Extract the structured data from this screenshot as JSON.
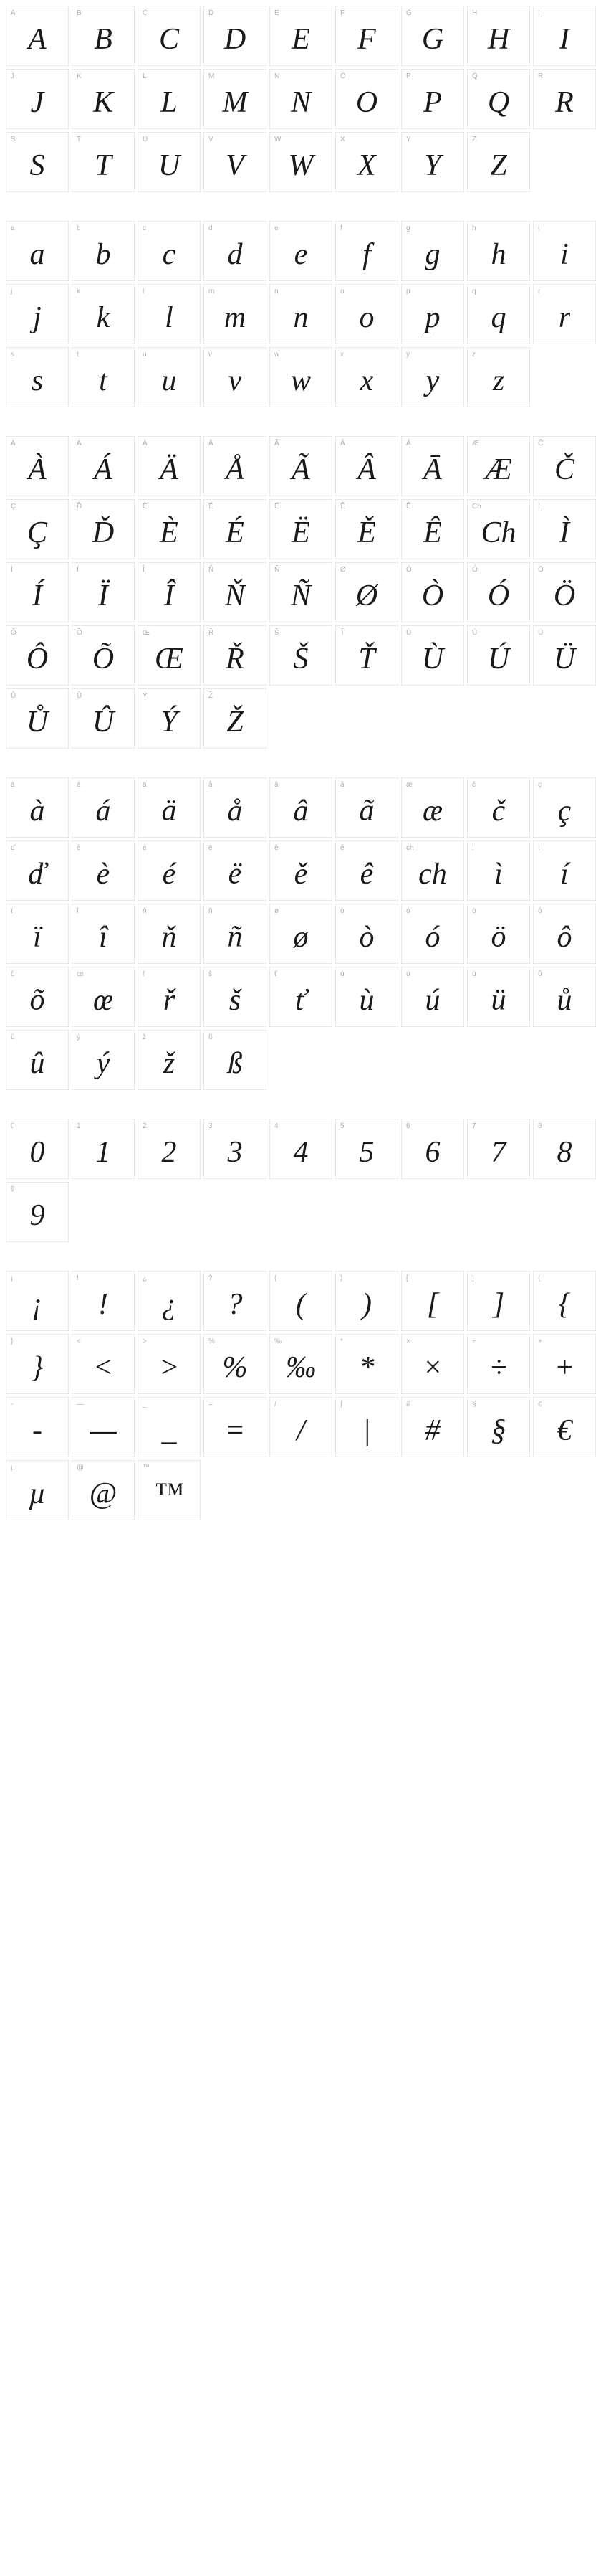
{
  "cell": {
    "width": 88,
    "height": 84,
    "border_color": "#e8e8e8",
    "label_color": "#b0b0b0",
    "label_fontsize": 10,
    "glyph_fontsize": 42,
    "glyph_color": "#1a1a1a"
  },
  "sections": [
    {
      "name": "uppercase",
      "cells": [
        {
          "label": "A",
          "glyph": "A"
        },
        {
          "label": "B",
          "glyph": "B"
        },
        {
          "label": "C",
          "glyph": "C"
        },
        {
          "label": "D",
          "glyph": "D"
        },
        {
          "label": "E",
          "glyph": "E"
        },
        {
          "label": "F",
          "glyph": "F"
        },
        {
          "label": "G",
          "glyph": "G"
        },
        {
          "label": "H",
          "glyph": "H"
        },
        {
          "label": "I",
          "glyph": "I"
        },
        {
          "label": "J",
          "glyph": "J"
        },
        {
          "label": "K",
          "glyph": "K"
        },
        {
          "label": "L",
          "glyph": "L"
        },
        {
          "label": "M",
          "glyph": "M"
        },
        {
          "label": "N",
          "glyph": "N"
        },
        {
          "label": "O",
          "glyph": "O"
        },
        {
          "label": "P",
          "glyph": "P"
        },
        {
          "label": "Q",
          "glyph": "Q"
        },
        {
          "label": "R",
          "glyph": "R"
        },
        {
          "label": "S",
          "glyph": "S"
        },
        {
          "label": "T",
          "glyph": "T"
        },
        {
          "label": "U",
          "glyph": "U"
        },
        {
          "label": "V",
          "glyph": "V"
        },
        {
          "label": "W",
          "glyph": "W"
        },
        {
          "label": "X",
          "glyph": "X"
        },
        {
          "label": "Y",
          "glyph": "Y"
        },
        {
          "label": "Z",
          "glyph": "Z"
        }
      ]
    },
    {
      "name": "lowercase",
      "cells": [
        {
          "label": "a",
          "glyph": "a"
        },
        {
          "label": "b",
          "glyph": "b"
        },
        {
          "label": "c",
          "glyph": "c"
        },
        {
          "label": "d",
          "glyph": "d"
        },
        {
          "label": "e",
          "glyph": "e"
        },
        {
          "label": "f",
          "glyph": "f"
        },
        {
          "label": "g",
          "glyph": "g"
        },
        {
          "label": "h",
          "glyph": "h"
        },
        {
          "label": "i",
          "glyph": "i"
        },
        {
          "label": "j",
          "glyph": "j"
        },
        {
          "label": "k",
          "glyph": "k"
        },
        {
          "label": "l",
          "glyph": "l"
        },
        {
          "label": "m",
          "glyph": "m"
        },
        {
          "label": "n",
          "glyph": "n"
        },
        {
          "label": "o",
          "glyph": "o"
        },
        {
          "label": "p",
          "glyph": "p"
        },
        {
          "label": "q",
          "glyph": "q"
        },
        {
          "label": "r",
          "glyph": "r"
        },
        {
          "label": "s",
          "glyph": "s"
        },
        {
          "label": "t",
          "glyph": "t"
        },
        {
          "label": "u",
          "glyph": "u"
        },
        {
          "label": "v",
          "glyph": "v"
        },
        {
          "label": "w",
          "glyph": "w"
        },
        {
          "label": "x",
          "glyph": "x"
        },
        {
          "label": "y",
          "glyph": "y"
        },
        {
          "label": "z",
          "glyph": "z"
        }
      ]
    },
    {
      "name": "uppercase-accented",
      "cells": [
        {
          "label": "À",
          "glyph": "À"
        },
        {
          "label": "Á",
          "glyph": "Á"
        },
        {
          "label": "Ä",
          "glyph": "Ä"
        },
        {
          "label": "Å",
          "glyph": "Å"
        },
        {
          "label": "Ã",
          "glyph": "Ã"
        },
        {
          "label": "Â",
          "glyph": "Â"
        },
        {
          "label": "Ā",
          "glyph": "Ā"
        },
        {
          "label": "Æ",
          "glyph": "Æ"
        },
        {
          "label": "Č",
          "glyph": "Č"
        },
        {
          "label": "Ç",
          "glyph": "Ç"
        },
        {
          "label": "Ď",
          "glyph": "Ď"
        },
        {
          "label": "È",
          "glyph": "È"
        },
        {
          "label": "É",
          "glyph": "É"
        },
        {
          "label": "Ë",
          "glyph": "Ë"
        },
        {
          "label": "Ě",
          "glyph": "Ě"
        },
        {
          "label": "Ê",
          "glyph": "Ê"
        },
        {
          "label": "Ch",
          "glyph": "Ch"
        },
        {
          "label": "Ì",
          "glyph": "Ì"
        },
        {
          "label": "Í",
          "glyph": "Í"
        },
        {
          "label": "Ï",
          "glyph": "Ï"
        },
        {
          "label": "Î",
          "glyph": "Î"
        },
        {
          "label": "Ň",
          "glyph": "Ň"
        },
        {
          "label": "Ñ",
          "glyph": "Ñ"
        },
        {
          "label": "Ø",
          "glyph": "Ø"
        },
        {
          "label": "Ò",
          "glyph": "Ò"
        },
        {
          "label": "Ó",
          "glyph": "Ó"
        },
        {
          "label": "Ö",
          "glyph": "Ö"
        },
        {
          "label": "Ô",
          "glyph": "Ô"
        },
        {
          "label": "Õ",
          "glyph": "Õ"
        },
        {
          "label": "Œ",
          "glyph": "Œ"
        },
        {
          "label": "Ř",
          "glyph": "Ř"
        },
        {
          "label": "Š",
          "glyph": "Š"
        },
        {
          "label": "Ť",
          "glyph": "Ť"
        },
        {
          "label": "Ù",
          "glyph": "Ù"
        },
        {
          "label": "Ú",
          "glyph": "Ú"
        },
        {
          "label": "Ü",
          "glyph": "Ü"
        },
        {
          "label": "Ů",
          "glyph": "Ů"
        },
        {
          "label": "Û",
          "glyph": "Û"
        },
        {
          "label": "Ý",
          "glyph": "Ý"
        },
        {
          "label": "Ž",
          "glyph": "Ž"
        }
      ]
    },
    {
      "name": "lowercase-accented",
      "cells": [
        {
          "label": "à",
          "glyph": "à"
        },
        {
          "label": "á",
          "glyph": "á"
        },
        {
          "label": "ä",
          "glyph": "ä"
        },
        {
          "label": "å",
          "glyph": "å"
        },
        {
          "label": "â",
          "glyph": "â"
        },
        {
          "label": "ã",
          "glyph": "ã"
        },
        {
          "label": "æ",
          "glyph": "æ"
        },
        {
          "label": "č",
          "glyph": "č"
        },
        {
          "label": "ç",
          "glyph": "ç"
        },
        {
          "label": "ď",
          "glyph": "ď"
        },
        {
          "label": "è",
          "glyph": "è"
        },
        {
          "label": "é",
          "glyph": "é"
        },
        {
          "label": "ë",
          "glyph": "ë"
        },
        {
          "label": "ě",
          "glyph": "ě"
        },
        {
          "label": "ê",
          "glyph": "ê"
        },
        {
          "label": "ch",
          "glyph": "ch"
        },
        {
          "label": "ì",
          "glyph": "ì"
        },
        {
          "label": "í",
          "glyph": "í"
        },
        {
          "label": "ï",
          "glyph": "ï"
        },
        {
          "label": "î",
          "glyph": "î"
        },
        {
          "label": "ň",
          "glyph": "ň"
        },
        {
          "label": "ñ",
          "glyph": "ñ"
        },
        {
          "label": "ø",
          "glyph": "ø"
        },
        {
          "label": "ò",
          "glyph": "ò"
        },
        {
          "label": "ó",
          "glyph": "ó"
        },
        {
          "label": "ö",
          "glyph": "ö"
        },
        {
          "label": "ô",
          "glyph": "ô"
        },
        {
          "label": "õ",
          "glyph": "õ"
        },
        {
          "label": "œ",
          "glyph": "œ"
        },
        {
          "label": "ř",
          "glyph": "ř"
        },
        {
          "label": "š",
          "glyph": "š"
        },
        {
          "label": "ť",
          "glyph": "ť"
        },
        {
          "label": "ù",
          "glyph": "ù"
        },
        {
          "label": "ú",
          "glyph": "ú"
        },
        {
          "label": "ü",
          "glyph": "ü"
        },
        {
          "label": "ů",
          "glyph": "ů"
        },
        {
          "label": "û",
          "glyph": "û"
        },
        {
          "label": "ý",
          "glyph": "ý"
        },
        {
          "label": "ž",
          "glyph": "ž"
        },
        {
          "label": "ß",
          "glyph": "ß"
        }
      ]
    },
    {
      "name": "numbers",
      "cells": [
        {
          "label": "0",
          "glyph": "0"
        },
        {
          "label": "1",
          "glyph": "1"
        },
        {
          "label": "2",
          "glyph": "2"
        },
        {
          "label": "3",
          "glyph": "3"
        },
        {
          "label": "4",
          "glyph": "4"
        },
        {
          "label": "5",
          "glyph": "5"
        },
        {
          "label": "6",
          "glyph": "6"
        },
        {
          "label": "7",
          "glyph": "7"
        },
        {
          "label": "8",
          "glyph": "8"
        },
        {
          "label": "9",
          "glyph": "9"
        }
      ]
    },
    {
      "name": "punctuation",
      "cells": [
        {
          "label": "¡",
          "glyph": "¡"
        },
        {
          "label": "!",
          "glyph": "!"
        },
        {
          "label": "¿",
          "glyph": "¿"
        },
        {
          "label": "?",
          "glyph": "?"
        },
        {
          "label": "(",
          "glyph": "("
        },
        {
          "label": ")",
          "glyph": ")"
        },
        {
          "label": "[",
          "glyph": "["
        },
        {
          "label": "]",
          "glyph": "]"
        },
        {
          "label": "{",
          "glyph": "{"
        },
        {
          "label": "}",
          "glyph": "}"
        },
        {
          "label": "<",
          "glyph": "<"
        },
        {
          "label": ">",
          "glyph": ">"
        },
        {
          "label": "%",
          "glyph": "%"
        },
        {
          "label": "‰",
          "glyph": "‰"
        },
        {
          "label": "*",
          "glyph": "*"
        },
        {
          "label": "×",
          "glyph": "×"
        },
        {
          "label": "÷",
          "glyph": "÷"
        },
        {
          "label": "+",
          "glyph": "+"
        },
        {
          "label": "-",
          "glyph": "-"
        },
        {
          "label": "—",
          "glyph": "—"
        },
        {
          "label": "_",
          "glyph": "_"
        },
        {
          "label": "=",
          "glyph": "="
        },
        {
          "label": "/",
          "glyph": "/"
        },
        {
          "label": "|",
          "glyph": "|"
        },
        {
          "label": "#",
          "glyph": "#"
        },
        {
          "label": "§",
          "glyph": "§"
        },
        {
          "label": "€",
          "glyph": "€"
        },
        {
          "label": "µ",
          "glyph": "µ"
        },
        {
          "label": "@",
          "glyph": "@"
        },
        {
          "label": "™",
          "glyph": "™"
        }
      ]
    }
  ]
}
